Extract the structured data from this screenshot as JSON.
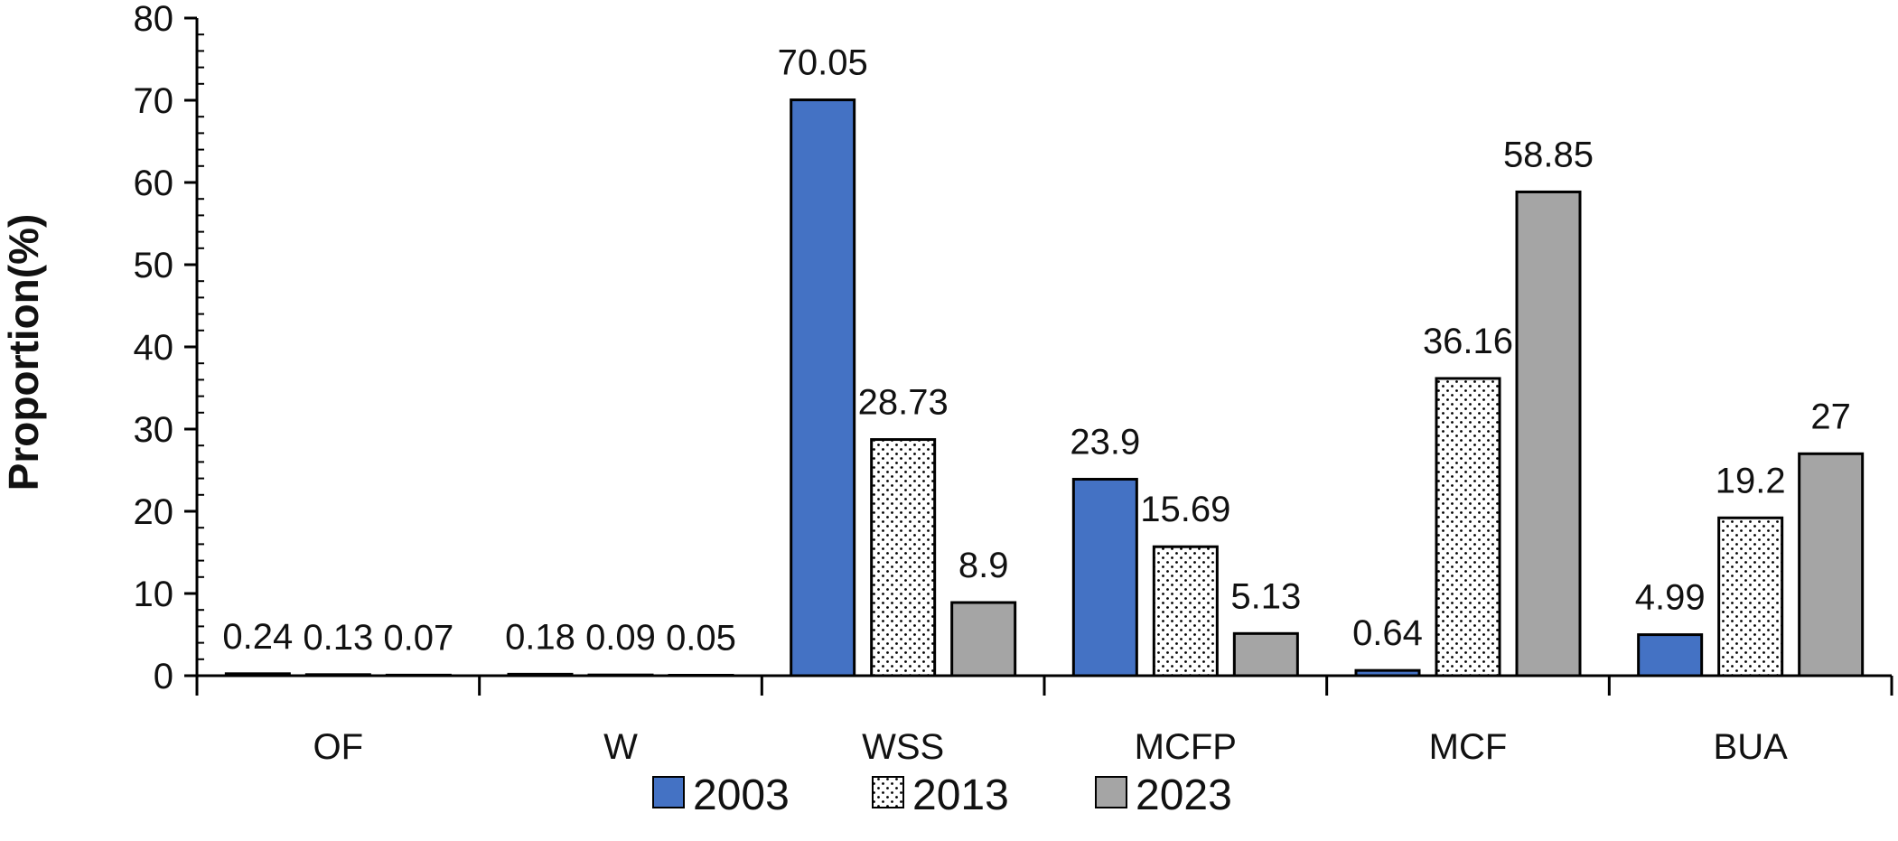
{
  "chart_data": {
    "type": "bar",
    "title": "",
    "xlabel": "",
    "ylabel": "Proportion(%)",
    "ylim": [
      0,
      80
    ],
    "y_ticks": [
      0,
      10,
      20,
      30,
      40,
      50,
      60,
      70,
      80
    ],
    "grid": false,
    "legend_position": "bottom",
    "categories": [
      "OF",
      "W",
      "WSS",
      "MCFP",
      "MCF",
      "BUA"
    ],
    "series": [
      {
        "name": "2003",
        "color": "#4472c4",
        "pattern": "solid",
        "values": [
          0.24,
          0.18,
          70.05,
          23.9,
          0.64,
          4.99
        ]
      },
      {
        "name": "2013",
        "color": "#ffffff",
        "pattern": "dotted",
        "values": [
          0.13,
          0.09,
          28.73,
          15.69,
          36.16,
          19.2
        ]
      },
      {
        "name": "2023",
        "color": "#a5a5a5",
        "pattern": "solid",
        "values": [
          0.07,
          0.05,
          8.9,
          5.13,
          58.85,
          27
        ]
      }
    ]
  }
}
